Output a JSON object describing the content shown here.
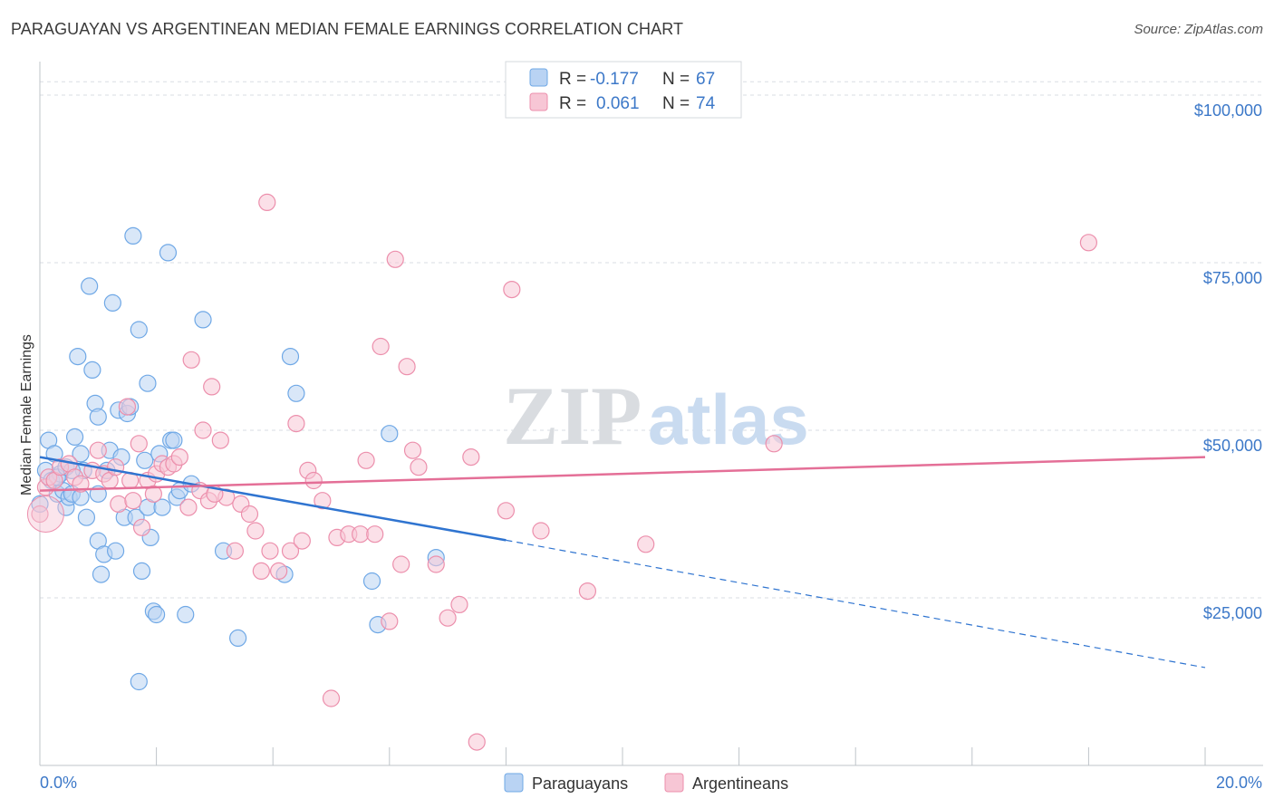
{
  "title": "PARAGUAYAN VS ARGENTINEAN MEDIAN FEMALE EARNINGS CORRELATION CHART",
  "source": "Source: ZipAtlas.com",
  "watermark": {
    "zip": "ZIP",
    "atlas": "atlas"
  },
  "colors": {
    "blue": "#6fa8e6",
    "blue_fill": "#b9d3f3",
    "blue_line": "#2f74d0",
    "pink": "#ec8fac",
    "pink_fill": "#f7c6d5",
    "pink_line": "#e46f97",
    "label_blue": "#3c78c8",
    "grid": "#d9dde3"
  },
  "legend": {
    "rows": [
      {
        "r_label": "R =",
        "r_value": "-0.177",
        "n_label": "N =",
        "n_value": "67"
      },
      {
        "r_label": "R =",
        "r_value": "0.061",
        "n_label": "N =",
        "n_value": "74"
      }
    ]
  },
  "bottom_legend": [
    "Paraguayans",
    "Argentineans"
  ],
  "chart_data": {
    "type": "scatter",
    "title": "PARAGUAYAN VS ARGENTINEAN MEDIAN FEMALE EARNINGS CORRELATION CHART",
    "xlabel": "",
    "ylabel": "Median Female Earnings",
    "xlim": [
      0,
      20
    ],
    "ylim": [
      0,
      105000
    ],
    "x_tick_labels": [
      "0.0%",
      "20.0%"
    ],
    "y_ticks": [
      25000,
      50000,
      75000,
      100000
    ],
    "y_tick_labels": [
      "$25,000",
      "$50,000",
      "$75,000",
      "$100,000"
    ],
    "grid": true,
    "legend_position": "top-center",
    "series": [
      {
        "name": "Paraguayans",
        "r": -0.177,
        "n": 67,
        "trend": {
          "x0": 0,
          "y0": 46000,
          "x1": 8,
          "y1": 33600,
          "dashed_to_x": 20,
          "dashed_to_y": 14600
        },
        "points": [
          [
            0.0,
            39000
          ],
          [
            0.1,
            44000
          ],
          [
            0.15,
            48500
          ],
          [
            0.2,
            42500
          ],
          [
            0.25,
            46500
          ],
          [
            0.3,
            40500
          ],
          [
            0.35,
            43500
          ],
          [
            0.4,
            41000
          ],
          [
            0.45,
            38500
          ],
          [
            0.5,
            40000
          ],
          [
            0.55,
            40500
          ],
          [
            0.6,
            49000
          ],
          [
            0.65,
            61000
          ],
          [
            0.7,
            46500
          ],
          [
            0.75,
            44000
          ],
          [
            0.8,
            37000
          ],
          [
            0.85,
            71500
          ],
          [
            0.9,
            59000
          ],
          [
            0.95,
            54000
          ],
          [
            1.0,
            52000
          ],
          [
            1.0,
            33500
          ],
          [
            1.05,
            28500
          ],
          [
            1.1,
            31500
          ],
          [
            1.15,
            44000
          ],
          [
            1.2,
            47000
          ],
          [
            1.25,
            69000
          ],
          [
            1.3,
            32000
          ],
          [
            1.35,
            53000
          ],
          [
            1.4,
            46000
          ],
          [
            1.45,
            37000
          ],
          [
            1.5,
            52500
          ],
          [
            1.55,
            53500
          ],
          [
            1.6,
            79000
          ],
          [
            1.65,
            37000
          ],
          [
            1.7,
            12500
          ],
          [
            1.7,
            65000
          ],
          [
            1.75,
            29000
          ],
          [
            1.8,
            45500
          ],
          [
            1.85,
            38500
          ],
          [
            1.85,
            57000
          ],
          [
            1.9,
            34000
          ],
          [
            1.95,
            23000
          ],
          [
            2.0,
            22500
          ],
          [
            2.05,
            46500
          ],
          [
            2.1,
            38500
          ],
          [
            2.2,
            76500
          ],
          [
            2.25,
            48500
          ],
          [
            2.3,
            48500
          ],
          [
            2.35,
            40000
          ],
          [
            2.4,
            41000
          ],
          [
            2.5,
            22500
          ],
          [
            2.6,
            42000
          ],
          [
            2.8,
            66500
          ],
          [
            3.15,
            32000
          ],
          [
            3.4,
            19000
          ],
          [
            4.2,
            28500
          ],
          [
            4.3,
            61000
          ],
          [
            4.4,
            55500
          ],
          [
            5.8,
            21000
          ],
          [
            6.0,
            49500
          ],
          [
            5.7,
            27500
          ],
          [
            6.8,
            31000
          ],
          [
            0.3,
            43000
          ],
          [
            0.45,
            44500
          ],
          [
            0.7,
            40000
          ],
          [
            0.55,
            44000
          ],
          [
            1.0,
            40500
          ]
        ]
      },
      {
        "name": "Argentineans",
        "r": 0.061,
        "n": 74,
        "trend": {
          "x0": 0,
          "y0": 41000,
          "x1": 20,
          "y1": 46000
        },
        "points": [
          [
            0.0,
            37500
          ],
          [
            0.1,
            41500
          ],
          [
            0.15,
            43000
          ],
          [
            0.25,
            42500
          ],
          [
            0.35,
            44500
          ],
          [
            0.5,
            45000
          ],
          [
            0.6,
            43000
          ],
          [
            0.7,
            42000
          ],
          [
            0.9,
            44000
          ],
          [
            1.0,
            47000
          ],
          [
            1.1,
            43500
          ],
          [
            1.2,
            42500
          ],
          [
            1.3,
            44500
          ],
          [
            1.35,
            39000
          ],
          [
            1.5,
            53500
          ],
          [
            1.55,
            42500
          ],
          [
            1.6,
            39500
          ],
          [
            1.7,
            48000
          ],
          [
            1.75,
            35500
          ],
          [
            1.85,
            42500
          ],
          [
            1.95,
            40500
          ],
          [
            2.0,
            43500
          ],
          [
            2.1,
            45000
          ],
          [
            2.2,
            44500
          ],
          [
            2.3,
            45000
          ],
          [
            2.4,
            46000
          ],
          [
            2.55,
            38500
          ],
          [
            2.6,
            60500
          ],
          [
            2.75,
            41000
          ],
          [
            2.8,
            50000
          ],
          [
            2.9,
            39500
          ],
          [
            2.95,
            56500
          ],
          [
            3.1,
            48500
          ],
          [
            3.2,
            40000
          ],
          [
            3.35,
            32000
          ],
          [
            3.45,
            39000
          ],
          [
            3.6,
            37500
          ],
          [
            3.7,
            35000
          ],
          [
            3.8,
            29000
          ],
          [
            3.9,
            84000
          ],
          [
            3.95,
            32000
          ],
          [
            4.1,
            29000
          ],
          [
            4.3,
            32000
          ],
          [
            4.4,
            51000
          ],
          [
            4.5,
            33500
          ],
          [
            4.6,
            44000
          ],
          [
            4.7,
            42500
          ],
          [
            4.85,
            39500
          ],
          [
            5.1,
            34000
          ],
          [
            5.0,
            10000
          ],
          [
            5.3,
            34500
          ],
          [
            5.5,
            34500
          ],
          [
            5.6,
            45500
          ],
          [
            5.75,
            34500
          ],
          [
            5.85,
            62500
          ],
          [
            6.0,
            21500
          ],
          [
            6.1,
            75500
          ],
          [
            6.2,
            30000
          ],
          [
            6.3,
            59500
          ],
          [
            6.4,
            47000
          ],
          [
            6.5,
            44500
          ],
          [
            6.8,
            30000
          ],
          [
            7.0,
            22000
          ],
          [
            7.2,
            24000
          ],
          [
            7.4,
            46000
          ],
          [
            7.5,
            3500
          ],
          [
            8.0,
            38000
          ],
          [
            8.1,
            71000
          ],
          [
            8.6,
            35000
          ],
          [
            9.4,
            26000
          ],
          [
            10.4,
            33000
          ],
          [
            12.6,
            48000
          ],
          [
            18.0,
            78000
          ],
          [
            3.0,
            40500
          ]
        ]
      }
    ]
  }
}
